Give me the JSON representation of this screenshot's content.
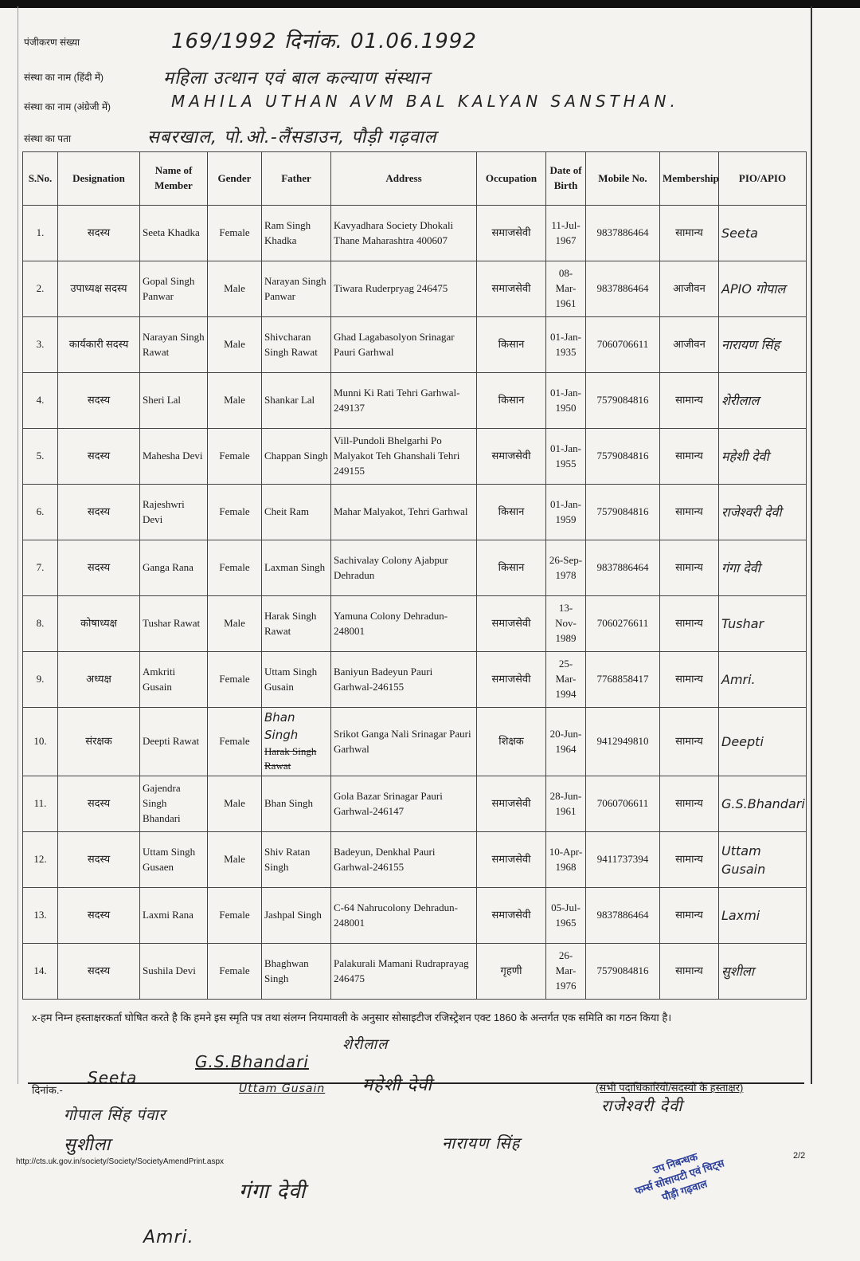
{
  "header": {
    "registration_label": "पंजीकरण संख्या",
    "registration_value": "169/1992 दिनांक. 01.06.1992",
    "name_hindi_label": "संस्था का नाम (हिंदी में)",
    "name_hindi_value": "महिला उत्थान एवं बाल कल्याण संस्थान",
    "name_english_label": "संस्था का नाम (अंग्रेजी में)",
    "name_english_value": "MAHILA UTHAN AVM BAL KALYAN SANSTHAN.",
    "address_label": "संस्था का पता",
    "address_value": "सबरखाल, पो.ओ.-लैंसडाउन, पौड़ी गढ़वाल"
  },
  "table": {
    "columns": [
      "S.No.",
      "Designation",
      "Name of Member",
      "Gender",
      "Father",
      "Address",
      "Occupation",
      "Date of Birth",
      "Mobile No.",
      "Membership",
      "PIO/APIO"
    ],
    "rows": [
      [
        "1.",
        "सदस्य",
        "Seeta Khadka",
        "Female",
        "Ram Singh Khadka",
        "Kavyadhara Society Dhokali Thane Maharashtra 400607",
        "समाजसेवी",
        "11-Jul-1967",
        "9837886464",
        "सामान्य",
        "Seeta"
      ],
      [
        "2.",
        "उपाध्यक्ष सदस्य",
        "Gopal Singh Panwar",
        "Male",
        "Narayan Singh Panwar",
        "Tiwara Ruderpryag 246475",
        "समाजसेवी",
        "08-Mar-1961",
        "9837886464",
        "आजीवन",
        "APIO गोपाल"
      ],
      [
        "3.",
        "कार्यकारी सदस्य",
        "Narayan Singh Rawat",
        "Male",
        "Shivcharan Singh Rawat",
        "Ghad Lagabasolyon Srinagar Pauri Garhwal",
        "किसान",
        "01-Jan-1935",
        "7060706611",
        "आजीवन",
        "नारायण सिंह"
      ],
      [
        "4.",
        "सदस्य",
        "Sheri Lal",
        "Male",
        "Shankar Lal",
        "Munni Ki Rati Tehri Garhwal-249137",
        "किसान",
        "01-Jan-1950",
        "7579084816",
        "सामान्य",
        "शेरीलाल"
      ],
      [
        "5.",
        "सदस्य",
        "Mahesha Devi",
        "Female",
        "Chappan Singh",
        "Vill-Pundoli Bhelgarhi Po Malyakot Teh Ghanshali Tehri 249155",
        "समाजसेवी",
        "01-Jan-1955",
        "7579084816",
        "सामान्य",
        "महेशी देवी"
      ],
      [
        "6.",
        "सदस्य",
        "Rajeshwri Devi",
        "Female",
        "Cheit Ram",
        "Mahar Malyakot, Tehri Garhwal",
        "किसान",
        "01-Jan-1959",
        "7579084816",
        "सामान्य",
        "राजेश्वरी देवी"
      ],
      [
        "7.",
        "सदस्य",
        "Ganga Rana",
        "Female",
        "Laxman Singh",
        "Sachivalay Colony Ajabpur Dehradun",
        "किसान",
        "26-Sep-1978",
        "9837886464",
        "सामान्य",
        "गंगा देवी"
      ],
      [
        "8.",
        "कोषाध्यक्ष",
        "Tushar Rawat",
        "Male",
        "Harak Singh Rawat",
        "Yamuna Colony Dehradun-248001",
        "समाजसेवी",
        "13-Nov-1989",
        "7060276611",
        "सामान्य",
        "Tushar"
      ],
      [
        "9.",
        "अध्यक्ष",
        "Amkriti Gusain",
        "Female",
        "Uttam Singh Gusain",
        "Baniyun Badeyun Pauri Garhwal-246155",
        "समाजसेवी",
        "25-Mar-1994",
        "7768858417",
        "सामान्य",
        "Amri."
      ],
      [
        "10.",
        "संरक्षक",
        "Deepti Rawat",
        "Female",
        "Harak Singh Rawat",
        "Srikot Ganga Nali Srinagar Pauri Garhwal",
        "शिक्षक",
        "20-Jun-1964",
        "9412949810",
        "सामान्य",
        "Deepti"
      ],
      [
        "11.",
        "सदस्य",
        "Gajendra Singh Bhandari",
        "Male",
        "Bhan Singh",
        "Gola Bazar Srinagar Pauri Garhwal-246147",
        "समाजसेवी",
        "28-Jun-1961",
        "7060706611",
        "सामान्य",
        "G.S.Bhandari"
      ],
      [
        "12.",
        "सदस्य",
        "Uttam Singh Gusaen",
        "Male",
        "Shiv Ratan Singh",
        "Badeyun, Denkhal Pauri Garhwal-246155",
        "समाजसेवी",
        "10-Apr-1968",
        "9411737394",
        "सामान्य",
        "Uttam Gusain"
      ],
      [
        "13.",
        "सदस्य",
        "Laxmi Rana",
        "Female",
        "Jashpal Singh",
        "C-64 Nahrucolony Dehradun-248001",
        "समाजसेवी",
        "05-Jul-1965",
        "9837886464",
        "सामान्य",
        "Laxmi"
      ],
      [
        "14.",
        "सदस्य",
        "Sushila Devi",
        "Female",
        "Bhaghwan Singh",
        "Palakurali Mamani Rudraprayag 246475",
        "गृहणी",
        "26-Mar-1976",
        "7579084816",
        "सामान्य",
        "सुशीला"
      ]
    ],
    "row10_father_correction": "Bhan Singh"
  },
  "declaration": {
    "text": "x-हम निम्न हस्ताक्षरकर्ता घोषित करते है कि हमने इस स्मृति पत्र तथा संलग्न नियमावली के अनुसार सोसाइटीज रजिस्ट्रेशन एक्ट 1860 के अन्तर्गत एक समिति का गठन किया है।",
    "date_label": "दिनांक.-",
    "signatures_label": "(सभी पदाधिकारियों/सदस्यों के हस्ताक्षर)",
    "handwritten_signatures": [
      "Seeta",
      "G.S.Bhandari",
      "शेरीलाल",
      "Uttam Gusain",
      "महेशी देवी",
      "गोपाल सिंह पंवार",
      "राजेश्वरी देवी"
    ]
  },
  "footer": {
    "url": "http://cts.uk.gov.in/society/Society/SocietyAmendPrint.aspx",
    "page": "2/2",
    "below_signatures": [
      "सुशीला",
      "नारायण सिंह",
      "गंगा देवी",
      "Amri."
    ],
    "stamp_lines": [
      "उप निबन्धक",
      "फर्म्स सोसायटी एवं चिट्स",
      "पौड़ी गढ़वाल"
    ],
    "stamp_color": "#2c3f9a"
  }
}
